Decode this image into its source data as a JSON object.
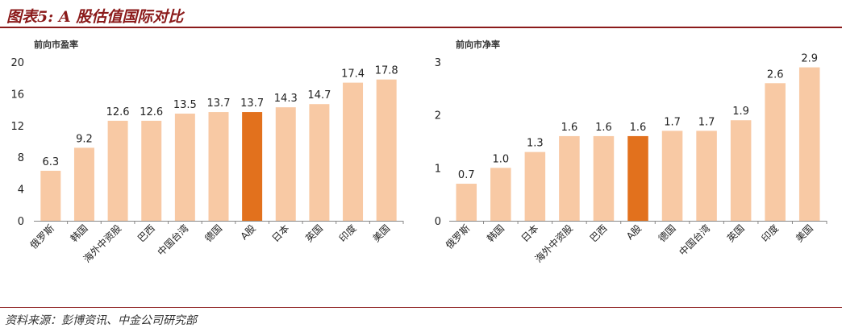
{
  "figure": {
    "title": "图表5: A 股估值国际对比",
    "source": "资料来源：彭博资讯、中金公司研究部"
  },
  "colors": {
    "bar": "#f8c9a4",
    "highlight": "#e2711d",
    "rule": "#8b1a1a",
    "axis": "#888888"
  },
  "chart_data": [
    {
      "type": "bar",
      "title": "前向市盈率",
      "xlabel": "",
      "ylabel": "",
      "categories": [
        "俄罗斯",
        "韩国",
        "海外中资股",
        "巴西",
        "中国台湾",
        "德国",
        "A股",
        "日本",
        "英国",
        "印度",
        "美国"
      ],
      "values": [
        6.3,
        9.2,
        12.6,
        12.6,
        13.5,
        13.7,
        13.7,
        14.3,
        14.7,
        17.4,
        17.8
      ],
      "value_labels": [
        "6.3",
        "9.2",
        "12.6",
        "12.6",
        "13.5",
        "13.7",
        "13.7",
        "14.3",
        "14.7",
        "17.4",
        "17.8"
      ],
      "highlight": "A股",
      "ylim": [
        0,
        20
      ],
      "yticks": [
        0,
        4,
        8,
        12,
        16,
        20
      ],
      "grid": false,
      "legend": "none"
    },
    {
      "type": "bar",
      "title": "前向市净率",
      "xlabel": "",
      "ylabel": "",
      "categories": [
        "俄罗斯",
        "韩国",
        "日本",
        "海外中资股",
        "巴西",
        "A股",
        "德国",
        "中国台湾",
        "英国",
        "印度",
        "美国"
      ],
      "values": [
        0.7,
        1.0,
        1.3,
        1.6,
        1.6,
        1.6,
        1.7,
        1.7,
        1.9,
        2.6,
        2.9
      ],
      "value_labels": [
        "0.7",
        "1.0",
        "1.3",
        "1.6",
        "1.6",
        "1.6",
        "1.7",
        "1.7",
        "1.9",
        "2.6",
        "2.9"
      ],
      "highlight": "A股",
      "ylim": [
        0,
        3
      ],
      "yticks": [
        0,
        1,
        2,
        3
      ],
      "grid": false,
      "legend": "none"
    }
  ]
}
